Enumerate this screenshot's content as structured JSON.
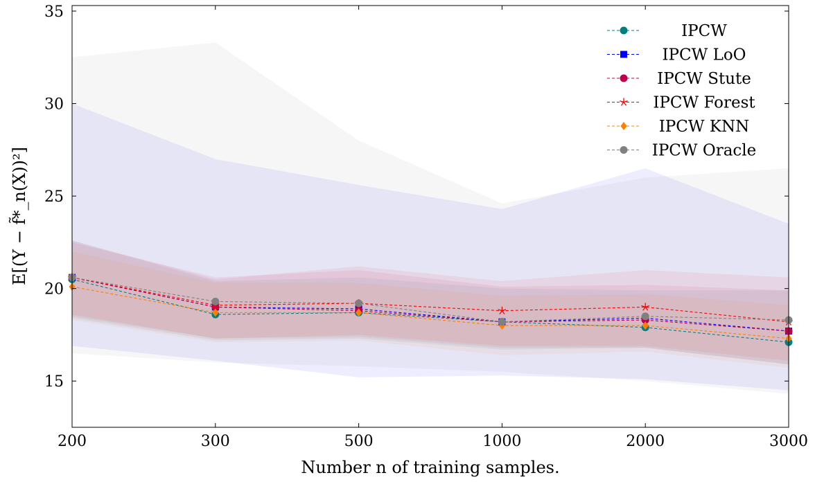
{
  "chart_data": {
    "type": "line",
    "title": "",
    "xlabel": "Number n of training samples.",
    "ylabel": "E[(Y − f̃*_n(X))²]",
    "categories": [
      "200",
      "300",
      "500",
      "1000",
      "2000",
      "3000"
    ],
    "ylim": [
      12.5,
      35.3
    ],
    "yticks": [
      15,
      20,
      25,
      30,
      35
    ],
    "grid": false,
    "legend_position": "top-right",
    "bands_shown": true,
    "series": [
      {
        "name": "IPCW",
        "color": "#008080",
        "marker": "circle",
        "values": [
          20.5,
          18.6,
          18.7,
          18.2,
          17.9,
          17.1
        ],
        "lower": [
          18.4,
          17.2,
          17.3,
          16.7,
          16.8,
          15.9
        ],
        "upper": [
          22.6,
          20.4,
          20.6,
          20.0,
          19.9,
          19.9
        ]
      },
      {
        "name": "IPCW LoO",
        "color": "#0000ff",
        "marker": "square",
        "values": [
          20.6,
          19.0,
          18.9,
          18.2,
          18.4,
          17.7
        ],
        "lower": [
          16.9,
          16.1,
          15.2,
          15.3,
          15.1,
          14.5
        ],
        "upper": [
          30.0,
          27.0,
          25.6,
          24.3,
          26.5,
          23.5
        ]
      },
      {
        "name": "IPCW Stute",
        "color": "#c0004d",
        "marker": "circle",
        "values": [
          20.6,
          19.0,
          18.8,
          18.2,
          18.3,
          17.7
        ],
        "lower": [
          18.5,
          17.3,
          17.4,
          16.8,
          16.8,
          15.9
        ],
        "upper": [
          22.5,
          20.6,
          21.0,
          20.1,
          20.2,
          19.9
        ]
      },
      {
        "name": "IPCW Forest",
        "color": "#ff0000",
        "marker": "star",
        "values": [
          20.6,
          19.1,
          19.2,
          18.8,
          19.0,
          18.2
        ],
        "lower": [
          18.6,
          17.3,
          17.5,
          16.9,
          16.9,
          16.1
        ],
        "upper": [
          22.6,
          20.5,
          21.2,
          20.4,
          21.0,
          20.6
        ]
      },
      {
        "name": "IPCW KNN",
        "color": "#ff8000",
        "marker": "diamond",
        "values": [
          20.1,
          18.7,
          18.7,
          18.0,
          18.0,
          17.3
        ],
        "lower": [
          18.3,
          17.1,
          17.2,
          16.4,
          16.6,
          15.7
        ],
        "upper": [
          22.0,
          20.3,
          20.3,
          19.6,
          19.7,
          19.1
        ]
      },
      {
        "name": "IPCW Oracle",
        "color": "#808080",
        "marker": "circle",
        "values": [
          20.6,
          19.3,
          19.2,
          18.2,
          18.5,
          18.3
        ],
        "lower": [
          16.5,
          16.0,
          15.8,
          15.5,
          15.0,
          14.3
        ],
        "upper": [
          32.5,
          33.3,
          28.0,
          24.6,
          26.0,
          26.5
        ]
      }
    ]
  }
}
